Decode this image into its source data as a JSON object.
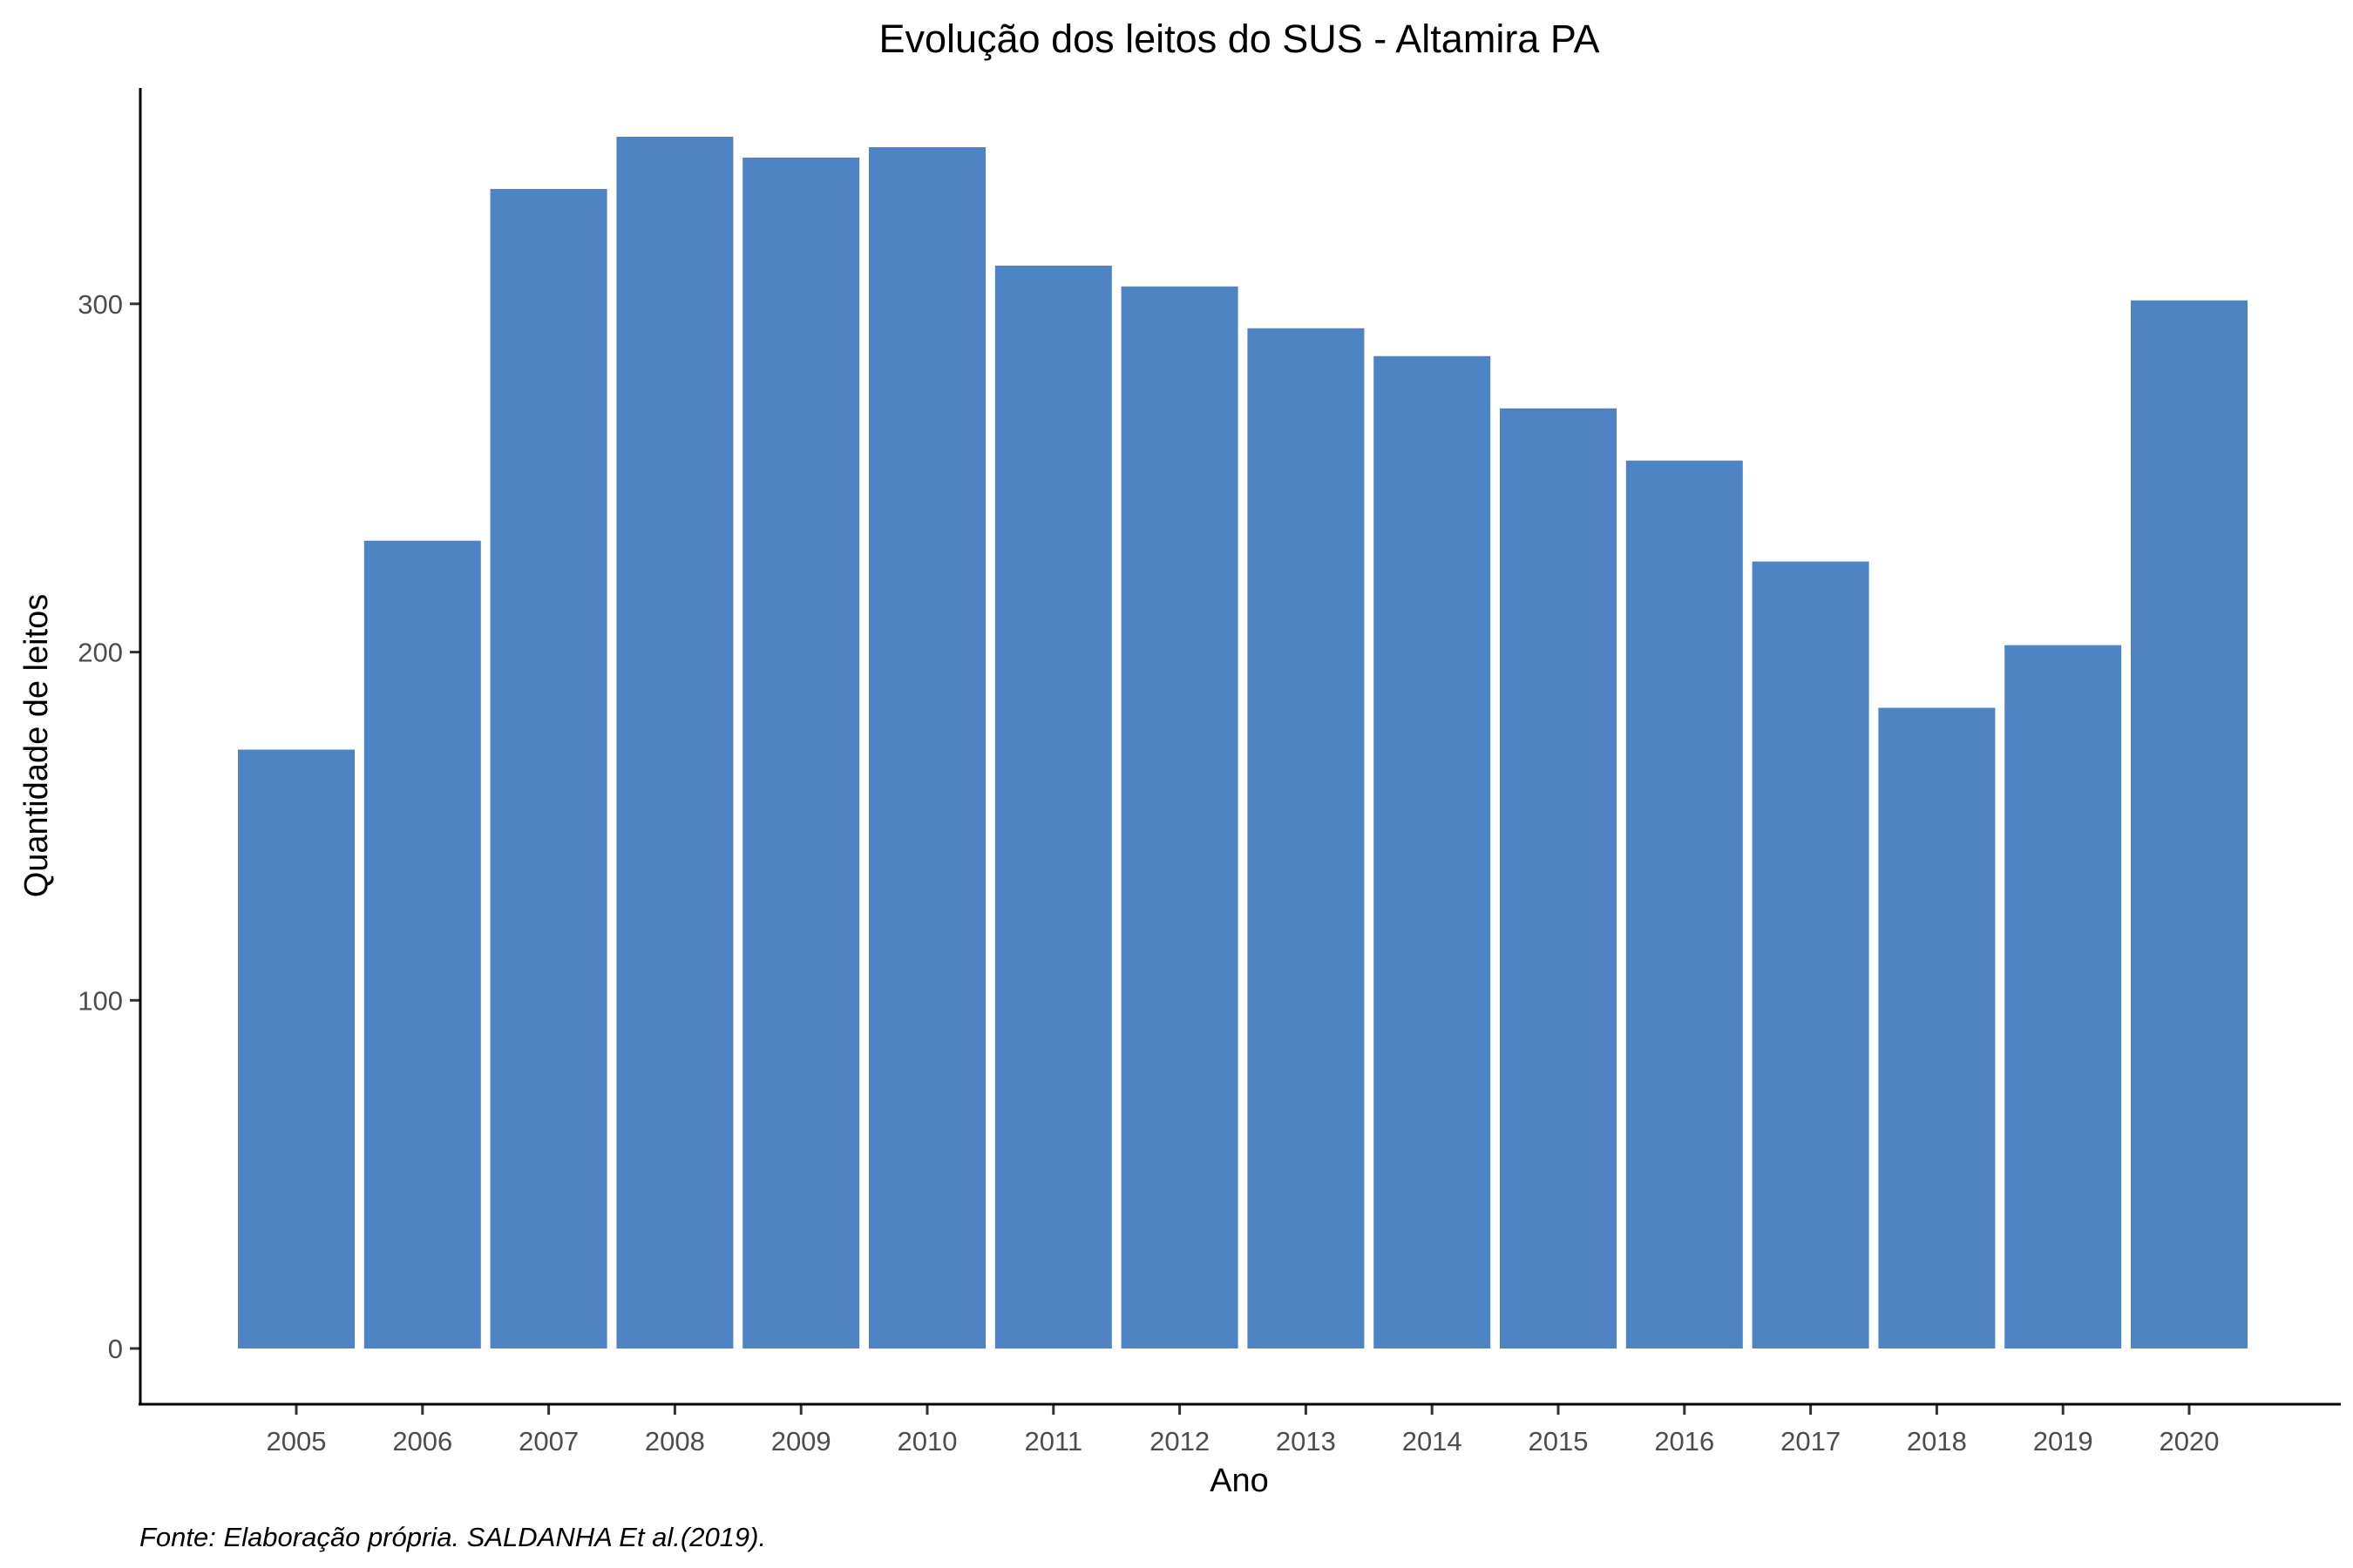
{
  "chart_data": {
    "type": "bar",
    "title": "Evolução dos leitos do SUS -  Altamira PA",
    "xlabel": "Ano",
    "ylabel": "Quantidade de leitos",
    "caption": "Fonte: Elaboração própria. SALDANHA Et al.(2019).",
    "categories": [
      "2005",
      "2006",
      "2007",
      "2008",
      "2009",
      "2010",
      "2011",
      "2012",
      "2013",
      "2014",
      "2015",
      "2016",
      "2017",
      "2018",
      "2019",
      "2020"
    ],
    "values": [
      172,
      232,
      333,
      348,
      342,
      345,
      311,
      305,
      293,
      285,
      270,
      255,
      226,
      184,
      202,
      301
    ],
    "yticks": [
      0,
      100,
      200,
      300
    ],
    "ylim": [
      -16,
      362
    ],
    "bar_color": "#4f84c4",
    "grid": false,
    "legend": "none"
  }
}
